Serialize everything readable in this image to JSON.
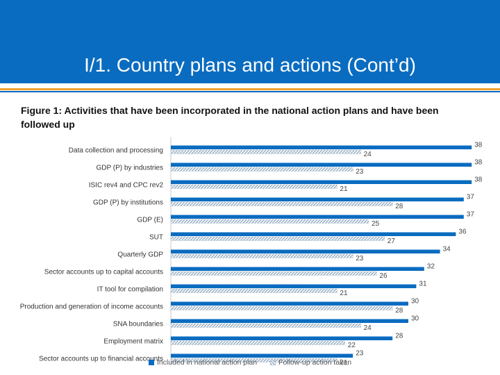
{
  "header": {
    "title": "I/1. Country plans and actions (Cont’d)"
  },
  "figure": {
    "caption": "Figure 1: Activities that have been incorporated in the national action plans and have been followed up"
  },
  "colors": {
    "header_bg": "#0a6cc0",
    "accent_orange": "#f0a02c",
    "series_included": "#0a6cc0",
    "series_followup_hatch": "#9ab0c4"
  },
  "chart_data": {
    "type": "bar",
    "orientation": "horizontal",
    "categories": [
      "Data collection and processing",
      "GDP (P) by industries",
      "ISIC rev4 and CPC rev2",
      "GDP (P) by institutions",
      "GDP (E)",
      "SUT",
      "Quarterly GDP",
      "Sector accounts up to capital accounts",
      "IT tool for compilation",
      "Production and generation of income accounts",
      "SNA boundaries",
      "Employment matrix",
      "Sector accounts up to financial accounts"
    ],
    "series": [
      {
        "name": "Included in national action plan",
        "values": [
          38,
          38,
          38,
          37,
          37,
          36,
          34,
          32,
          31,
          30,
          30,
          28,
          23
        ]
      },
      {
        "name": "Follow-up action taken",
        "values": [
          24,
          23,
          21,
          28,
          25,
          27,
          23,
          26,
          21,
          28,
          24,
          22,
          21
        ]
      }
    ],
    "xlim": [
      0,
      40
    ],
    "grid": false,
    "legend_position": "bottom"
  }
}
